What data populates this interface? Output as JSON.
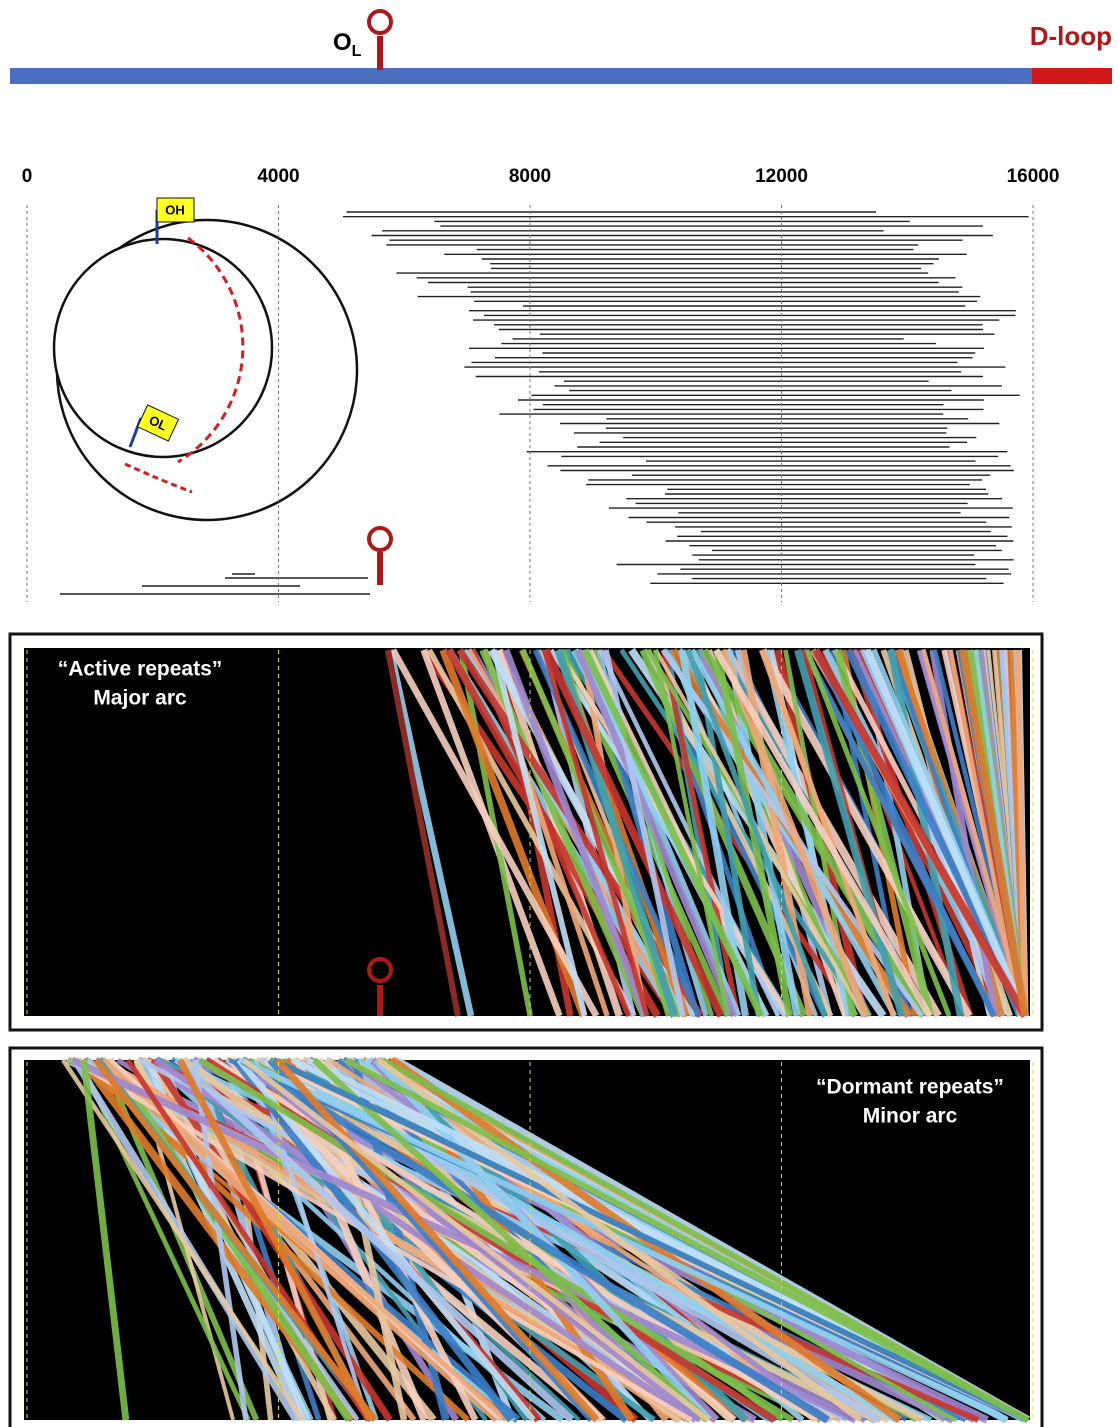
{
  "top": {
    "origin_label": "O",
    "origin_subscript": "L",
    "dloop_label": "D-loop"
  },
  "axis": {
    "ticks": [
      0,
      4000,
      8000,
      12000,
      16000
    ]
  },
  "inset": {
    "oh_label": "OH",
    "ol_label": "OL"
  },
  "panels": [
    {
      "title": "“Active repeats”",
      "subtitle": "Major arc"
    },
    {
      "title": "“Dormant repeats”",
      "subtitle": "Minor arc"
    }
  ]
}
